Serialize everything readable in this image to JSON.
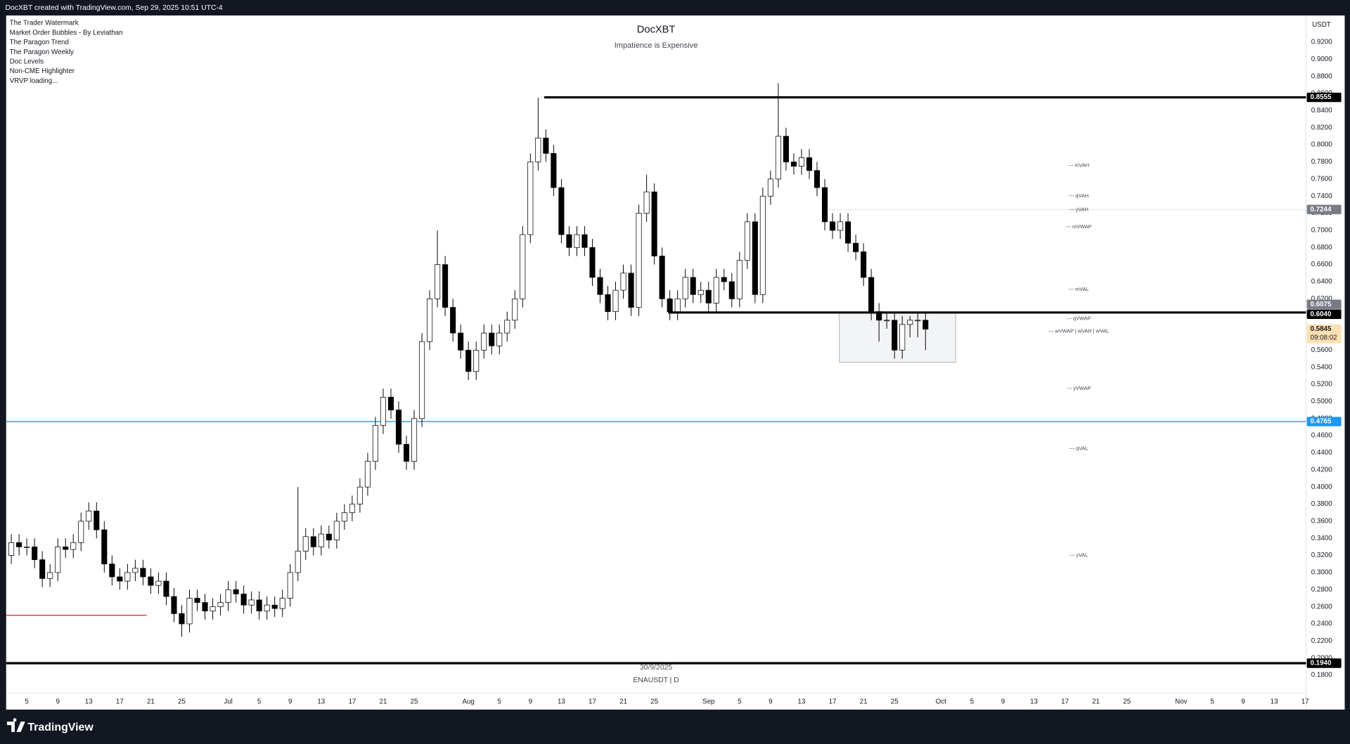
{
  "header": {
    "text": "DocXBT created with TradingView.com, Sep 29, 2025 10:51 UTC-4"
  },
  "indicators": [
    "The Trader Watermark",
    "Market Order Bubbles - By Leviathan",
    "The Paragon Trend",
    "The Paragon Weekly",
    "Doc Levels",
    "Non-CME Highlighter",
    "VRVP loading..."
  ],
  "footer": {
    "logo": "TradingView"
  },
  "chart_data": {
    "type": "candlestick",
    "title": "DocXBT",
    "subtitle": "Impatience is Expensive",
    "symbol": "ENAUSDT | D",
    "date_label": "30/9/2025",
    "currency": "USDT",
    "countdown": "09:08:02",
    "up_color": "#ffffff",
    "down_color": "#000000",
    "grid": false,
    "categories": [
      null,
      null,
      "5",
      null,
      null,
      null,
      "9",
      null,
      null,
      null,
      "13",
      null,
      null,
      null,
      "17",
      null,
      null,
      null,
      "21",
      null,
      null,
      null,
      "25",
      null,
      null,
      null,
      null,
      null,
      "Jul",
      null,
      null,
      null,
      "5",
      null,
      null,
      null,
      "9",
      null,
      null,
      null,
      "13",
      null,
      null,
      null,
      "17",
      null,
      null,
      null,
      "21",
      null,
      null,
      null,
      "25",
      null,
      null,
      null,
      null,
      null,
      null,
      "Aug",
      null,
      null,
      null,
      "5",
      null,
      null,
      null,
      "9",
      null,
      null,
      null,
      "13",
      null,
      null,
      null,
      "17",
      null,
      null,
      null,
      "21",
      null,
      null,
      null,
      "25",
      null,
      null,
      null,
      null,
      null,
      null,
      "Sep",
      null,
      null,
      null,
      "5",
      null,
      null,
      null,
      "9",
      null,
      null,
      null,
      "13",
      null,
      null,
      null,
      "17",
      null,
      null,
      null,
      "21",
      null,
      null,
      null,
      "25",
      null,
      null,
      null,
      null,
      null,
      "Oct",
      null,
      null,
      null,
      "5",
      null,
      null,
      null,
      "9",
      null,
      null,
      null,
      "13",
      null,
      null,
      null,
      "17",
      null,
      null,
      null,
      "21",
      null,
      null,
      null,
      "25",
      null,
      null,
      null,
      null,
      null,
      null,
      "Nov",
      null,
      null,
      null,
      "5",
      null,
      null,
      null,
      "9",
      null,
      null,
      null,
      "13",
      null,
      null,
      null,
      "17"
    ],
    "values": [
      [
        0.32,
        0.345,
        0.31,
        0.335
      ],
      [
        0.335,
        0.345,
        0.32,
        0.33
      ],
      [
        0.33,
        0.34,
        0.32,
        0.33
      ],
      [
        0.33,
        0.34,
        0.305,
        0.315
      ],
      [
        0.315,
        0.325,
        0.283,
        0.293
      ],
      [
        0.293,
        0.31,
        0.283,
        0.3
      ],
      [
        0.3,
        0.34,
        0.29,
        0.33
      ],
      [
        0.33,
        0.34,
        0.317,
        0.327
      ],
      [
        0.327,
        0.345,
        0.317,
        0.335
      ],
      [
        0.335,
        0.37,
        0.325,
        0.36
      ],
      [
        0.36,
        0.382,
        0.35,
        0.372
      ],
      [
        0.372,
        0.382,
        0.34,
        0.35
      ],
      [
        0.35,
        0.36,
        0.3,
        0.31
      ],
      [
        0.31,
        0.32,
        0.285,
        0.295
      ],
      [
        0.295,
        0.305,
        0.28,
        0.29
      ],
      [
        0.29,
        0.31,
        0.28,
        0.3
      ],
      [
        0.3,
        0.315,
        0.29,
        0.305
      ],
      [
        0.305,
        0.315,
        0.285,
        0.295
      ],
      [
        0.295,
        0.305,
        0.275,
        0.285
      ],
      [
        0.285,
        0.3,
        0.275,
        0.29
      ],
      [
        0.29,
        0.3,
        0.262,
        0.272
      ],
      [
        0.272,
        0.282,
        0.242,
        0.252
      ],
      [
        0.252,
        0.262,
        0.225,
        0.24
      ],
      [
        0.24,
        0.28,
        0.23,
        0.27
      ],
      [
        0.27,
        0.28,
        0.255,
        0.265
      ],
      [
        0.265,
        0.275,
        0.245,
        0.255
      ],
      [
        0.255,
        0.27,
        0.245,
        0.26
      ],
      [
        0.26,
        0.275,
        0.25,
        0.265
      ],
      [
        0.265,
        0.29,
        0.255,
        0.28
      ],
      [
        0.28,
        0.29,
        0.265,
        0.275
      ],
      [
        0.275,
        0.285,
        0.252,
        0.262
      ],
      [
        0.262,
        0.278,
        0.252,
        0.268
      ],
      [
        0.268,
        0.278,
        0.245,
        0.255
      ],
      [
        0.255,
        0.272,
        0.245,
        0.262
      ],
      [
        0.262,
        0.272,
        0.248,
        0.258
      ],
      [
        0.258,
        0.28,
        0.248,
        0.27
      ],
      [
        0.27,
        0.31,
        0.26,
        0.3
      ],
      [
        0.3,
        0.4,
        0.29,
        0.325
      ],
      [
        0.325,
        0.352,
        0.315,
        0.342
      ],
      [
        0.342,
        0.352,
        0.32,
        0.33
      ],
      [
        0.33,
        0.355,
        0.32,
        0.345
      ],
      [
        0.345,
        0.355,
        0.328,
        0.338
      ],
      [
        0.338,
        0.37,
        0.328,
        0.36
      ],
      [
        0.36,
        0.38,
        0.35,
        0.37
      ],
      [
        0.37,
        0.39,
        0.36,
        0.38
      ],
      [
        0.38,
        0.41,
        0.37,
        0.4
      ],
      [
        0.4,
        0.44,
        0.39,
        0.43
      ],
      [
        0.43,
        0.482,
        0.42,
        0.472
      ],
      [
        0.472,
        0.515,
        0.462,
        0.505
      ],
      [
        0.505,
        0.515,
        0.48,
        0.49
      ],
      [
        0.49,
        0.5,
        0.44,
        0.45
      ],
      [
        0.45,
        0.46,
        0.42,
        0.43
      ],
      [
        0.43,
        0.49,
        0.42,
        0.48
      ],
      [
        0.48,
        0.58,
        0.47,
        0.57
      ],
      [
        0.57,
        0.63,
        0.56,
        0.62
      ],
      [
        0.62,
        0.7,
        0.61,
        0.66
      ],
      [
        0.66,
        0.67,
        0.6,
        0.61
      ],
      [
        0.61,
        0.62,
        0.57,
        0.58
      ],
      [
        0.58,
        0.59,
        0.55,
        0.56
      ],
      [
        0.56,
        0.57,
        0.525,
        0.535
      ],
      [
        0.535,
        0.57,
        0.525,
        0.56
      ],
      [
        0.56,
        0.59,
        0.55,
        0.58
      ],
      [
        0.58,
        0.59,
        0.555,
        0.565
      ],
      [
        0.565,
        0.59,
        0.555,
        0.58
      ],
      [
        0.58,
        0.605,
        0.57,
        0.595
      ],
      [
        0.595,
        0.63,
        0.585,
        0.62
      ],
      [
        0.62,
        0.705,
        0.61,
        0.695
      ],
      [
        0.695,
        0.79,
        0.685,
        0.78
      ],
      [
        0.78,
        0.855,
        0.77,
        0.808
      ],
      [
        0.808,
        0.818,
        0.78,
        0.79
      ],
      [
        0.79,
        0.8,
        0.74,
        0.75
      ],
      [
        0.75,
        0.76,
        0.685,
        0.695
      ],
      [
        0.695,
        0.705,
        0.67,
        0.68
      ],
      [
        0.68,
        0.705,
        0.67,
        0.695
      ],
      [
        0.695,
        0.705,
        0.67,
        0.68
      ],
      [
        0.68,
        0.69,
        0.635,
        0.645
      ],
      [
        0.645,
        0.655,
        0.615,
        0.625
      ],
      [
        0.625,
        0.635,
        0.595,
        0.605
      ],
      [
        0.605,
        0.64,
        0.595,
        0.63
      ],
      [
        0.63,
        0.66,
        0.62,
        0.65
      ],
      [
        0.65,
        0.66,
        0.6,
        0.61
      ],
      [
        0.61,
        0.73,
        0.6,
        0.72
      ],
      [
        0.72,
        0.765,
        0.71,
        0.745
      ],
      [
        0.745,
        0.755,
        0.66,
        0.67
      ],
      [
        0.67,
        0.68,
        0.61,
        0.62
      ],
      [
        0.62,
        0.63,
        0.595,
        0.605
      ],
      [
        0.605,
        0.63,
        0.595,
        0.62
      ],
      [
        0.62,
        0.655,
        0.61,
        0.645
      ],
      [
        0.645,
        0.655,
        0.615,
        0.625
      ],
      [
        0.625,
        0.64,
        0.615,
        0.63
      ],
      [
        0.63,
        0.64,
        0.605,
        0.615
      ],
      [
        0.615,
        0.655,
        0.605,
        0.645
      ],
      [
        0.645,
        0.655,
        0.63,
        0.64
      ],
      [
        0.64,
        0.65,
        0.61,
        0.62
      ],
      [
        0.62,
        0.675,
        0.61,
        0.665
      ],
      [
        0.665,
        0.72,
        0.655,
        0.71
      ],
      [
        0.71,
        0.72,
        0.615,
        0.625
      ],
      [
        0.625,
        0.75,
        0.615,
        0.74
      ],
      [
        0.74,
        0.77,
        0.73,
        0.76
      ],
      [
        0.76,
        0.872,
        0.75,
        0.81
      ],
      [
        0.81,
        0.82,
        0.77,
        0.78
      ],
      [
        0.78,
        0.79,
        0.765,
        0.775
      ],
      [
        0.775,
        0.795,
        0.765,
        0.785
      ],
      [
        0.785,
        0.795,
        0.76,
        0.77
      ],
      [
        0.77,
        0.78,
        0.74,
        0.75
      ],
      [
        0.75,
        0.76,
        0.7,
        0.71
      ],
      [
        0.71,
        0.72,
        0.69,
        0.7
      ],
      [
        0.7,
        0.72,
        0.69,
        0.71
      ],
      [
        0.71,
        0.72,
        0.675,
        0.685
      ],
      [
        0.685,
        0.695,
        0.665,
        0.675
      ],
      [
        0.675,
        0.685,
        0.635,
        0.645
      ],
      [
        0.645,
        0.655,
        0.595,
        0.605
      ],
      [
        0.605,
        0.615,
        0.57,
        0.595
      ],
      [
        0.595,
        0.605,
        0.585,
        0.595
      ],
      [
        0.595,
        0.605,
        0.55,
        0.56
      ],
      [
        0.56,
        0.6,
        0.55,
        0.59
      ],
      [
        0.59,
        0.6,
        0.575,
        0.595
      ],
      [
        0.595,
        0.605,
        0.575,
        0.595
      ],
      [
        0.595,
        0.605,
        0.56,
        0.5845
      ],
      null,
      null,
      null,
      null,
      null,
      null,
      null,
      null,
      null,
      null,
      null,
      null,
      null,
      null,
      null,
      null,
      null,
      null,
      null,
      null,
      null,
      null,
      null,
      null,
      null,
      null,
      null,
      null,
      null,
      null,
      null,
      null,
      null,
      null,
      null,
      null,
      null,
      null,
      null,
      null,
      null,
      null,
      null,
      null,
      null,
      null,
      null,
      null,
      null
    ],
    "ylim": [
      0.1589,
      0.9512
    ],
    "yticks": [
      {
        "value": 0.18,
        "label": "0.1800"
      },
      {
        "value": 0.2,
        "label": "0.2000"
      },
      {
        "value": 0.22,
        "label": "0.2200"
      },
      {
        "value": 0.24,
        "label": "0.2400"
      },
      {
        "value": 0.26,
        "label": "0.2600"
      },
      {
        "value": 0.28,
        "label": "0.2800"
      },
      {
        "value": 0.3,
        "label": "0.3000"
      },
      {
        "value": 0.32,
        "label": "0.3200"
      },
      {
        "value": 0.34,
        "label": "0.3400"
      },
      {
        "value": 0.36,
        "label": "0.3600"
      },
      {
        "value": 0.38,
        "label": "0.3800"
      },
      {
        "value": 0.4,
        "label": "0.4000"
      },
      {
        "value": 0.42,
        "label": "0.4200"
      },
      {
        "value": 0.44,
        "label": "0.4400"
      },
      {
        "value": 0.46,
        "label": "0.4600"
      },
      {
        "value": 0.48,
        "label": "0.4800"
      },
      {
        "value": 0.5,
        "label": "0.5000"
      },
      {
        "value": 0.52,
        "label": "0.5200"
      },
      {
        "value": 0.54,
        "label": "0.5400"
      },
      {
        "value": 0.56,
        "label": "0.5600"
      },
      {
        "value": 0.58,
        "label": "0.5800"
      },
      {
        "value": 0.6,
        "label": "0.6000"
      },
      {
        "value": 0.62,
        "label": "0.6200"
      },
      {
        "value": 0.64,
        "label": "0.6400"
      },
      {
        "value": 0.66,
        "label": "0.6600"
      },
      {
        "value": 0.68,
        "label": "0.6800"
      },
      {
        "value": 0.7,
        "label": "0.7000"
      },
      {
        "value": 0.72,
        "label": "0.7200"
      },
      {
        "value": 0.74,
        "label": "0.7400"
      },
      {
        "value": 0.76,
        "label": "0.7600"
      },
      {
        "value": 0.78,
        "label": "0.7800"
      },
      {
        "value": 0.8,
        "label": "0.8000"
      },
      {
        "value": 0.82,
        "label": "0.8200"
      },
      {
        "value": 0.84,
        "label": "0.8400"
      },
      {
        "value": 0.86,
        "label": "0.8600"
      },
      {
        "value": 0.88,
        "label": "0.8800"
      },
      {
        "value": 0.9,
        "label": "0.9000"
      },
      {
        "value": 0.92,
        "label": "0.9200"
      }
    ],
    "levels": [
      {
        "value": 0.8555,
        "color": "#000000"
      },
      {
        "value": 0.604,
        "color": "#000000"
      },
      {
        "value": 0.4765,
        "color": "#2196f3"
      },
      {
        "value": 0.194,
        "color": "#000000"
      },
      {
        "value": 0.25,
        "color": "#f23645"
      },
      {
        "value": 0.7244,
        "color": "#b2b5be"
      }
    ],
    "price_labels": [
      {
        "value": 0.8555,
        "label": "0.8555",
        "color": "#000000"
      },
      {
        "value": 0.7244,
        "label": "0.7244",
        "color": "#787b86"
      },
      {
        "value": 0.6075,
        "label": "0.6075",
        "color": "#787b86"
      },
      {
        "value": 0.604,
        "label": "0.6040",
        "color": "#000000"
      },
      {
        "value": 0.5845,
        "label": "0.5845",
        "color": "#ffe0b2"
      },
      {
        "value": 0.4765,
        "label": "0.4765",
        "color": "#2196f3"
      },
      {
        "value": 0.194,
        "label": "0.1940",
        "color": "#000000"
      }
    ],
    "annotations": [
      {
        "text": "--- mVAH",
        "value": 0.776
      },
      {
        "text": "--- qVAH",
        "value": 0.74
      },
      {
        "text": "--- yVAH",
        "value": 0.724
      },
      {
        "text": "--- mVWAP",
        "value": 0.704
      },
      {
        "text": "--- mVAL",
        "value": 0.631
      },
      {
        "text": "--- qVWAP",
        "value": 0.597
      },
      {
        "text": "--- wVWAP | wVAH | wVAL",
        "value": 0.582
      },
      {
        "text": "--- yVWAP",
        "value": 0.515
      },
      {
        "text": "--- qVAL",
        "value": 0.445
      },
      {
        "text": "--- yVAL",
        "value": 0.32
      }
    ]
  }
}
